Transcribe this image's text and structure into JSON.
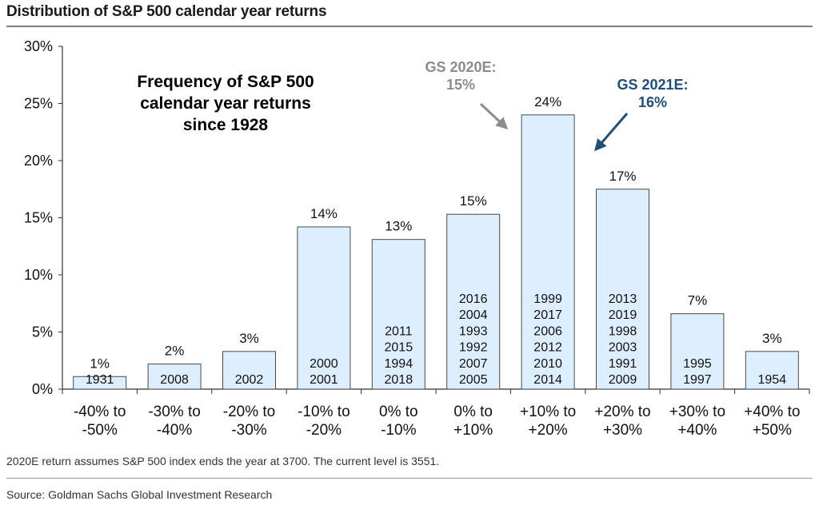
{
  "header": {
    "title": "Distribution of S&P 500 calendar year returns"
  },
  "footer": {
    "note": "2020E return assumes S&P 500 index ends the year at 3700. The current level is 3551.",
    "source": "Source: Goldman Sachs Global Investment Research"
  },
  "chart_data": {
    "type": "bar",
    "title": "",
    "inset_title": [
      "Frequency of S&P 500",
      "calendar year returns",
      "since 1928"
    ],
    "xlabel": "",
    "ylabel": "",
    "ylim": [
      0,
      30
    ],
    "yticks": [
      "0%",
      "5%",
      "10%",
      "15%",
      "20%",
      "25%",
      "30%"
    ],
    "grid": false,
    "categories": [
      [
        "-40% to",
        "-50%"
      ],
      [
        "-30% to",
        "-40%"
      ],
      [
        "-20% to",
        "-30%"
      ],
      [
        "-10% to",
        "-20%"
      ],
      [
        "0% to",
        "-10%"
      ],
      [
        "0% to",
        "+10%"
      ],
      [
        "+10% to",
        "+20%"
      ],
      [
        "+20% to",
        "+30%"
      ],
      [
        "+30% to",
        "+40%"
      ],
      [
        "+40% to",
        "+50%"
      ]
    ],
    "values": [
      1.1,
      2.2,
      3.3,
      14.2,
      13.1,
      15.3,
      24.0,
      17.5,
      6.6,
      3.3
    ],
    "value_labels": [
      "1%",
      "2%",
      "3%",
      "14%",
      "13%",
      "15%",
      "24%",
      "17%",
      "7%",
      "3%"
    ],
    "bar_years": [
      [
        "1931"
      ],
      [
        "2008"
      ],
      [
        "2002"
      ],
      [
        "2000",
        "2001"
      ],
      [
        "2011",
        "2015",
        "1994",
        "2018"
      ],
      [
        "2016",
        "2004",
        "1993",
        "1992",
        "2007",
        "2005"
      ],
      [
        "1999",
        "2017",
        "2006",
        "2012",
        "2010",
        "2014"
      ],
      [
        "2013",
        "2019",
        "1998",
        "2003",
        "1991",
        "2009"
      ],
      [
        "1995",
        "1997"
      ],
      [
        "1954"
      ]
    ],
    "annotations": [
      {
        "lines": [
          "GS 2020E:",
          "15%"
        ],
        "color": "#8c8c8c",
        "points_to": "+10% to +20%"
      },
      {
        "lines": [
          "GS 2021E:",
          "16%"
        ],
        "color": "#1f4e79",
        "points_to": "+20% to +30%"
      }
    ],
    "colors": {
      "bar_fill": "#ddeeff",
      "bar_stroke": "#4a4a4a",
      "axis": "#333333"
    }
  }
}
